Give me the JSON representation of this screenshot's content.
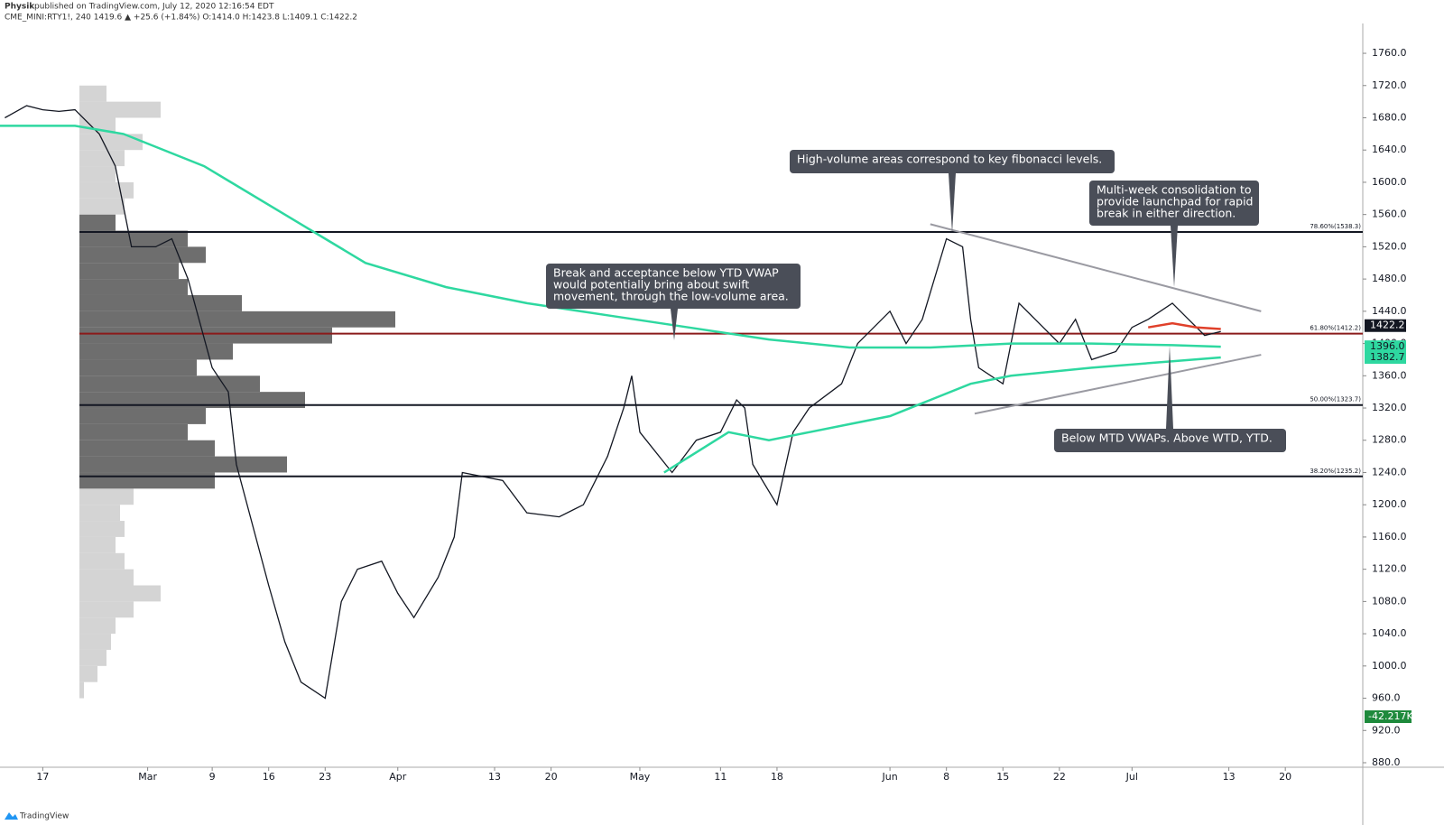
{
  "header": {
    "publisher": "Physik",
    "published": "published on TradingView.com, July 12, 2020 12:16:54 EDT",
    "symbol_line": "CME_MINI:RTY1!, 240  1419.6 ▲ +25.6 (+1.84%) O:1414.0 H:1423.8 L:1409.1 C:1422.2"
  },
  "footer": {
    "brand": "TradingView"
  },
  "chart_data": {
    "type": "line",
    "xlim": [
      -5.3,
      163.6
    ],
    "ylim": [
      874.4,
      1797
    ],
    "xticks": [
      {
        "value": 0,
        "label": "17"
      },
      {
        "value": 13,
        "label": "Mar"
      },
      {
        "value": 21,
        "label": "9"
      },
      {
        "value": 28,
        "label": "16"
      },
      {
        "value": 35,
        "label": "23"
      },
      {
        "value": 44,
        "label": "Apr"
      },
      {
        "value": 56,
        "label": "13"
      },
      {
        "value": 63,
        "label": "20"
      },
      {
        "value": 74,
        "label": "May"
      },
      {
        "value": 84,
        "label": "11"
      },
      {
        "value": 91,
        "label": "18"
      },
      {
        "value": 105,
        "label": "Jun"
      },
      {
        "value": 112,
        "label": "8"
      },
      {
        "value": 119,
        "label": "15"
      },
      {
        "value": 126,
        "label": "22"
      },
      {
        "value": 135,
        "label": "Jul"
      },
      {
        "value": 147,
        "label": "13"
      },
      {
        "value": 154,
        "label": "20"
      }
    ],
    "yticks": [
      {
        "value": 880,
        "label": "880.0"
      },
      {
        "value": 920,
        "label": "920.0"
      },
      {
        "value": 960,
        "label": "960.0"
      },
      {
        "value": 1000,
        "label": "1000.0"
      },
      {
        "value": 1040,
        "label": "1040.0"
      },
      {
        "value": 1080,
        "label": "1080.0"
      },
      {
        "value": 1120,
        "label": "1120.0"
      },
      {
        "value": 1160,
        "label": "1160.0"
      },
      {
        "value": 1200,
        "label": "1200.0"
      },
      {
        "value": 1240,
        "label": "1240.0"
      },
      {
        "value": 1280,
        "label": "1280.0"
      },
      {
        "value": 1320,
        "label": "1320.0"
      },
      {
        "value": 1360,
        "label": "1360.0"
      },
      {
        "value": 1400,
        "label": "1400.0"
      },
      {
        "value": 1440,
        "label": "1440.0"
      },
      {
        "value": 1480,
        "label": "1480.0"
      },
      {
        "value": 1520,
        "label": "1520.0"
      },
      {
        "value": 1560,
        "label": "1560.0"
      },
      {
        "value": 1600,
        "label": "1600.0"
      },
      {
        "value": 1640,
        "label": "1640.0"
      },
      {
        "value": 1680,
        "label": "1680.0"
      },
      {
        "value": 1720,
        "label": "1720.0"
      },
      {
        "value": 1760,
        "label": "1760.0"
      }
    ],
    "series": [
      {
        "name": "RTY1!",
        "color": "#131722",
        "x": [
          -4.7,
          -2,
          0,
          2,
          4,
          7,
          9,
          11,
          14,
          16,
          18,
          21,
          23,
          24,
          28,
          30,
          32,
          35,
          37,
          39,
          42,
          44,
          46,
          49,
          51,
          52,
          57,
          60,
          64,
          67,
          70,
          72,
          73,
          74,
          78,
          81,
          84,
          86,
          87,
          88,
          91,
          93,
          95,
          99,
          101,
          105,
          107,
          109,
          112,
          114,
          115,
          116,
          119,
          121,
          123,
          126,
          128,
          130,
          133,
          135,
          137,
          140,
          142,
          144,
          146
        ],
        "values": [
          1680,
          1695,
          1690,
          1688,
          1690,
          1660,
          1620,
          1520,
          1520,
          1530,
          1480,
          1370,
          1340,
          1250,
          1100,
          1030,
          980,
          960,
          1080,
          1120,
          1130,
          1090,
          1060,
          1110,
          1160,
          1240,
          1230,
          1190,
          1185,
          1200,
          1260,
          1320,
          1360,
          1290,
          1240,
          1280,
          1290,
          1330,
          1320,
          1250,
          1200,
          1290,
          1320,
          1350,
          1400,
          1440,
          1400,
          1430,
          1530,
          1520,
          1430,
          1370,
          1350,
          1450,
          1430,
          1400,
          1430,
          1380,
          1390,
          1420,
          1430,
          1450,
          1430,
          1410,
          1415
        ]
      },
      {
        "name": "YTD VWAP",
        "color": "#2ed8a0",
        "x": [
          -5.3,
          4,
          10,
          20,
          30,
          35,
          40,
          50,
          60,
          70,
          80,
          90,
          100,
          110,
          120,
          130,
          140,
          146
        ],
        "values": [
          1670,
          1670,
          1660,
          1620,
          1560,
          1530,
          1500,
          1470,
          1450,
          1435,
          1420,
          1405,
          1395,
          1395,
          1400,
          1400,
          1398,
          1396
        ]
      },
      {
        "name": "WTD VWAP",
        "color": "#2ed8a0",
        "x": [
          77,
          85,
          90,
          95,
          100,
          105,
          110,
          115,
          120,
          130,
          140,
          146
        ],
        "values": [
          1240,
          1290,
          1280,
          1290,
          1300,
          1310,
          1330,
          1350,
          1360,
          1370,
          1378,
          1382.7
        ]
      },
      {
        "name": "MTD VWAP",
        "color": "#e0402a",
        "x": [
          137,
          140,
          143,
          146
        ],
        "values": [
          1420,
          1425,
          1420,
          1418
        ]
      }
    ],
    "fib_levels": [
      {
        "value": 1538.3,
        "label": "78.60%(1538.3)",
        "color": "#131722"
      },
      {
        "value": 1412.2,
        "label": "61.80%(1412.2)",
        "color": "#8b1a1a"
      },
      {
        "value": 1323.7,
        "label": "50.00%(1323.7)",
        "color": "#131722"
      },
      {
        "value": 1235.2,
        "label": "38.20%(1235.2)",
        "color": "#131722"
      }
    ],
    "trend_lines": [
      {
        "x": [
          110,
          151
        ],
        "values": [
          1548,
          1440
        ]
      },
      {
        "x": [
          115.5,
          151
        ],
        "values": [
          1313,
          1386
        ]
      }
    ],
    "volume_profile": {
      "prices": [
        960,
        980,
        1000,
        1020,
        1040,
        1060,
        1080,
        1100,
        1120,
        1140,
        1160,
        1180,
        1200,
        1220,
        1240,
        1260,
        1280,
        1300,
        1320,
        1340,
        1360,
        1380,
        1400,
        1420,
        1440,
        1460,
        1480,
        1500,
        1520,
        1540,
        1560,
        1580,
        1600,
        1620,
        1640,
        1660,
        1680,
        1700
      ],
      "volumes": [
        5,
        20,
        30,
        35,
        40,
        60,
        90,
        60,
        50,
        40,
        50,
        45,
        60,
        150,
        230,
        150,
        120,
        140,
        250,
        200,
        130,
        170,
        280,
        350,
        180,
        120,
        110,
        140,
        120,
        40,
        50,
        60,
        40,
        50,
        70,
        40,
        90,
        30
      ]
    },
    "price_labels": [
      {
        "value": 1422.2,
        "color": "#131722"
      },
      {
        "value": 1396,
        "label": "1396.0",
        "color": "#2ed8a0"
      },
      {
        "value": 1382.7,
        "label": "1382.7",
        "color": "#2ed8a0"
      }
    ],
    "volume_label": "-42.217K",
    "annotations": [
      {
        "lines": [
          "High-volume areas correspond to key fibonacci levels."
        ]
      },
      {
        "lines": [
          "Multi-week consolidation to",
          "provide launchpad for rapid",
          "break in either direction."
        ]
      },
      {
        "lines": [
          "Break and acceptance below YTD VWAP",
          "would potentially bring about swift",
          "movement, through the low-volume area."
        ]
      },
      {
        "lines": [
          "Below MTD VWAPs. Above WTD, YTD."
        ]
      }
    ]
  }
}
